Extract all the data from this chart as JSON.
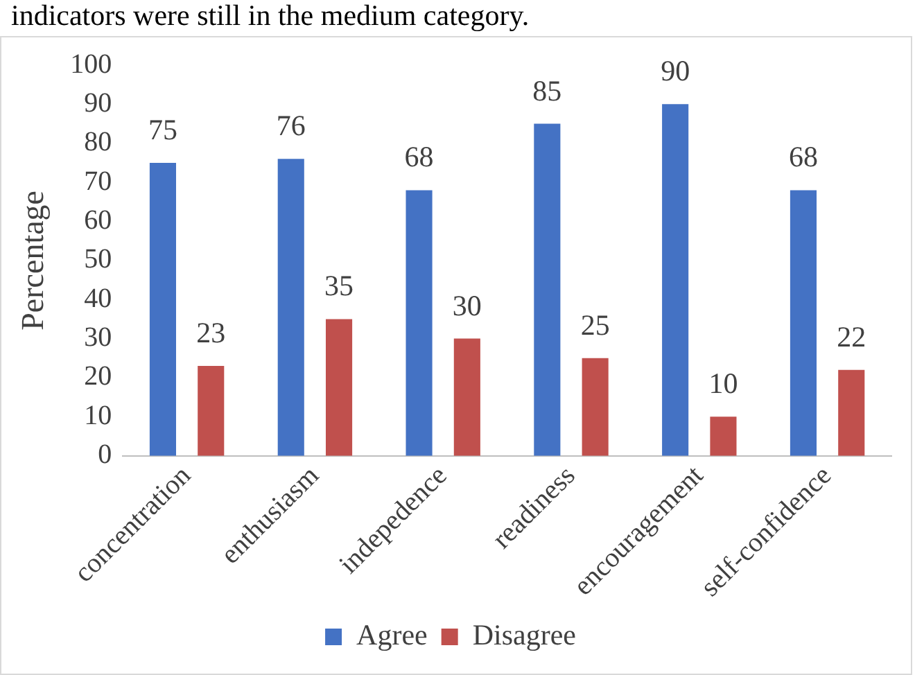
{
  "chart_data": {
    "type": "bar",
    "ylabel": "Percentage",
    "annotations": [
      "indicators were still in the medium category."
    ],
    "categories": [
      "concentration",
      "enthusiasm",
      "indepedence",
      "readiness",
      "encouragement",
      "self-confidence"
    ],
    "series": [
      {
        "name": "Agree",
        "color": "#4472c4",
        "values": [
          75,
          76,
          68,
          85,
          90,
          68
        ]
      },
      {
        "name": "Disagree",
        "color": "#c0504d",
        "values": [
          23,
          35,
          30,
          25,
          10,
          22
        ]
      }
    ],
    "ylim": [
      0,
      100
    ],
    "yticks": [
      0,
      10,
      20,
      30,
      40,
      50,
      60,
      70,
      80,
      90,
      100
    ],
    "grid": false,
    "legend": "bottom",
    "data_labels": true
  }
}
